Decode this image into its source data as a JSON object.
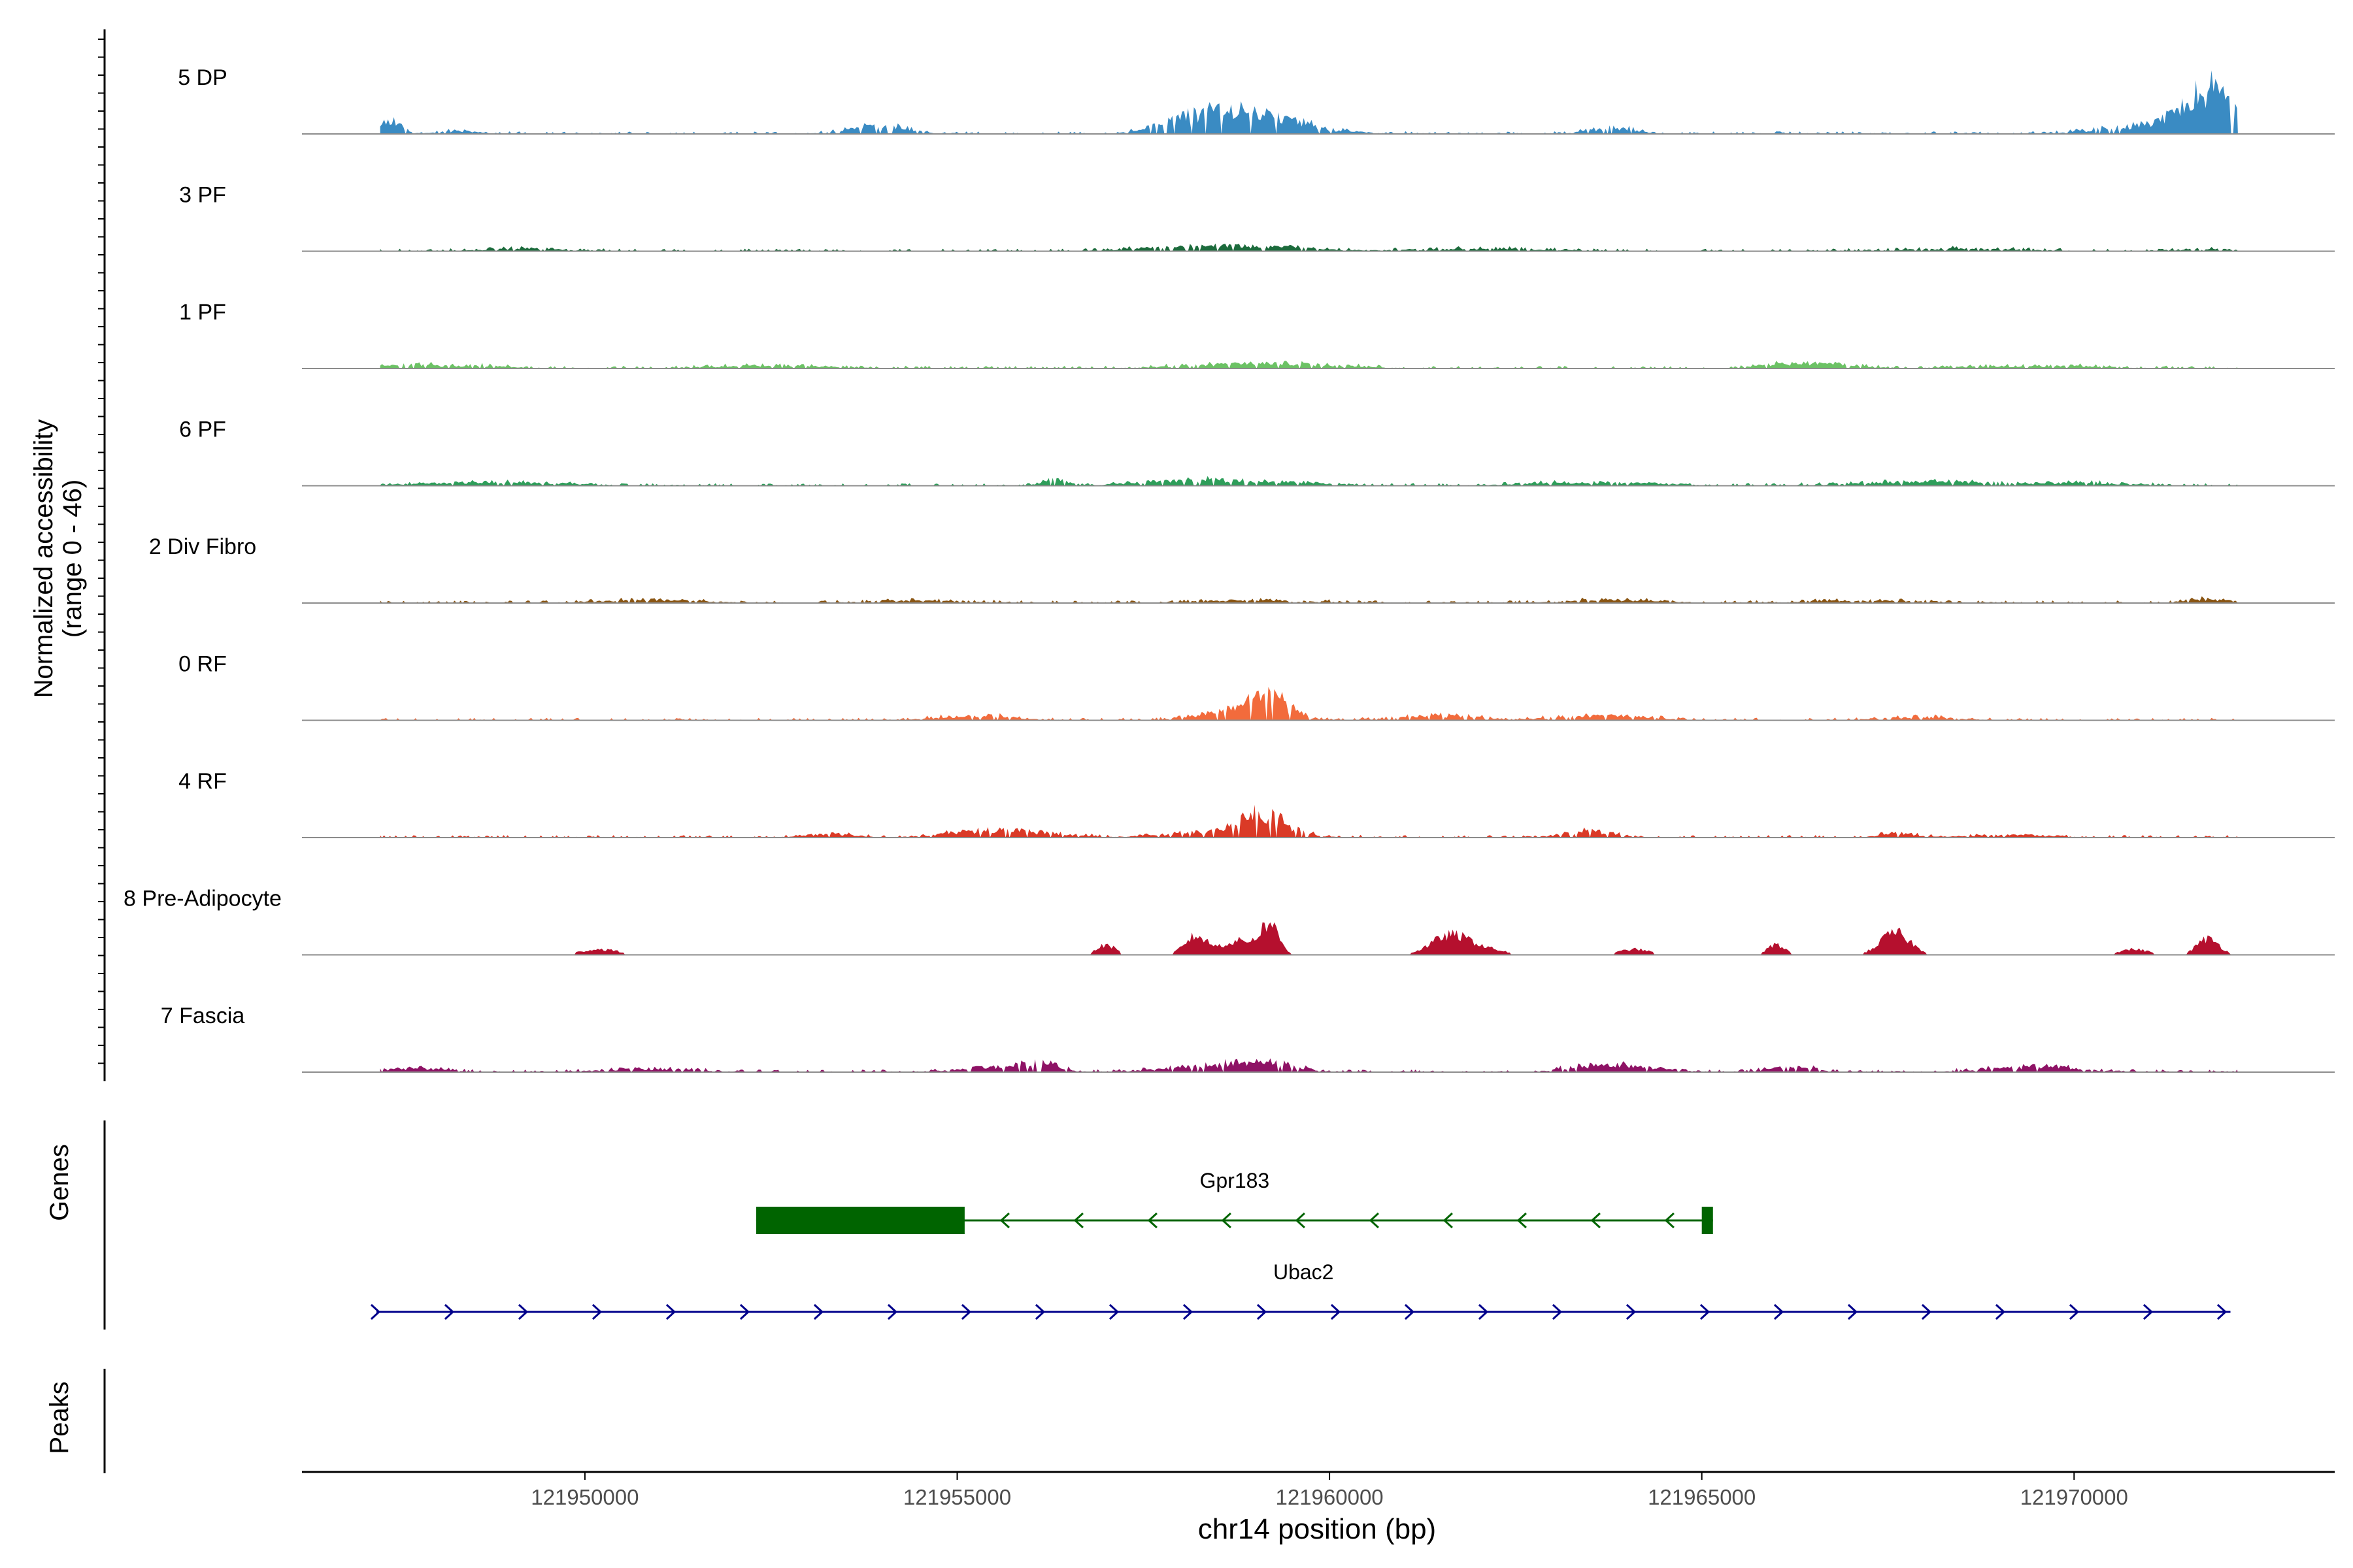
{
  "chart_data": {
    "type": "area",
    "title": "",
    "ylabel_line1": "Normalized accessibility",
    "ylabel_line2": "(range 0 - 46)",
    "y_range": [
      0,
      46
    ],
    "xlabel": "chr14 position (bp)",
    "xlim": [
      121946200,
      121973500
    ],
    "x_ticks": [
      121950000,
      121955000,
      121960000,
      121965000,
      121970000
    ],
    "x_tick_labels": [
      "121950000",
      "121955000",
      "121960000",
      "121965000",
      "121970000"
    ],
    "tracks": [
      {
        "name": "5 DP",
        "color": "#3A8BC3",
        "peaks": [
          [
            121947400,
            5.2,
            140
          ],
          [
            121948300,
            1.2,
            250
          ],
          [
            121953900,
            3.3,
            380
          ],
          [
            121958000,
            3.5,
            350
          ],
          [
            121958700,
            4.2,
            450
          ],
          [
            121959000,
            5.8,
            700
          ],
          [
            121963800,
            2.4,
            300
          ],
          [
            121971200,
            4.0,
            700
          ],
          [
            121971850,
            16.5,
            320
          ]
        ]
      },
      {
        "name": "3 PF",
        "color": "#1C6B3C",
        "peaks": [
          [
            121949200,
            1.0,
            500
          ],
          [
            121957900,
            1.2,
            600
          ],
          [
            121959000,
            1.8,
            700
          ],
          [
            121962000,
            0.9,
            900
          ],
          [
            121968500,
            1.0,
            800
          ],
          [
            121971900,
            0.8,
            400
          ]
        ]
      },
      {
        "name": "1 PF",
        "color": "#6CC265",
        "peaks": [
          [
            121947600,
            1.7,
            300
          ],
          [
            121948500,
            1.0,
            500
          ],
          [
            121952500,
            1.1,
            800
          ],
          [
            121959100,
            2.0,
            900
          ],
          [
            121966000,
            1.4,
            300
          ],
          [
            121966700,
            1.7,
            400
          ],
          [
            121969500,
            1.0,
            900
          ]
        ]
      },
      {
        "name": "6 PF",
        "color": "#2E9E5A",
        "peaks": [
          [
            121948800,
            1.5,
            900
          ],
          [
            121956300,
            2.8,
            150
          ],
          [
            121958000,
            2.0,
            600
          ],
          [
            121959200,
            1.5,
            700
          ],
          [
            121963500,
            1.4,
            800
          ],
          [
            121968000,
            1.6,
            900
          ],
          [
            121970200,
            1.0,
            600
          ]
        ]
      },
      {
        "name": "2 Div Fibro",
        "color": "#8A5512",
        "peaks": [
          [
            121950900,
            1.2,
            700
          ],
          [
            121954500,
            0.9,
            700
          ],
          [
            121959000,
            1.2,
            700
          ],
          [
            121963800,
            1.2,
            600
          ],
          [
            121967200,
            1.0,
            700
          ],
          [
            121971800,
            1.5,
            300
          ]
        ]
      },
      {
        "name": "0 RF",
        "color": "#F26B3C",
        "peaks": [
          [
            121955200,
            1.8,
            500
          ],
          [
            121958400,
            1.5,
            400
          ],
          [
            121959000,
            4.4,
            400
          ],
          [
            121959200,
            7.2,
            220
          ],
          [
            121961500,
            1.8,
            500
          ],
          [
            121963700,
            1.8,
            600
          ],
          [
            121967900,
            1.2,
            500
          ]
        ]
      },
      {
        "name": "4 RF",
        "color": "#DA3A27",
        "peaks": [
          [
            121953300,
            1.6,
            300
          ],
          [
            121955300,
            2.5,
            500
          ],
          [
            121956000,
            1.5,
            500
          ],
          [
            121958600,
            2.2,
            700
          ],
          [
            121959100,
            8.5,
            300
          ],
          [
            121963500,
            2.6,
            350
          ],
          [
            121967600,
            1.8,
            200
          ],
          [
            121969000,
            1.0,
            600
          ]
        ]
      },
      {
        "name": "8 Pre-Adipocyte",
        "color": "#B5102E",
        "peaks": [
          [
            121950200,
            2.8,
            250
          ],
          [
            121957000,
            5.0,
            120
          ],
          [
            121958200,
            9.0,
            150
          ],
          [
            121958800,
            7.0,
            250
          ],
          [
            121959200,
            14.0,
            120
          ],
          [
            121961600,
            8.5,
            250
          ],
          [
            121962000,
            3.2,
            300
          ],
          [
            121964100,
            2.8,
            200
          ],
          [
            121966000,
            5.0,
            120
          ],
          [
            121967600,
            11.0,
            200
          ],
          [
            121970800,
            2.8,
            200
          ],
          [
            121971800,
            8.0,
            150
          ]
        ]
      },
      {
        "name": "7 Fascia",
        "color": "#8E1265",
        "peaks": [
          [
            121947700,
            1.5,
            400
          ],
          [
            121950900,
            1.3,
            600
          ],
          [
            121955600,
            2.3,
            500
          ],
          [
            121956100,
            3.2,
            200
          ],
          [
            121958200,
            2.0,
            500
          ],
          [
            121959100,
            4.5,
            400
          ],
          [
            121963800,
            3.2,
            500
          ],
          [
            121966200,
            2.2,
            300
          ],
          [
            121969500,
            2.2,
            600
          ]
        ]
      }
    ],
    "genes_label": "Genes",
    "peaks_label": "Peaks",
    "genes": [
      {
        "name": "Gpr183",
        "color": "#006400",
        "start": 121952300,
        "end": 121965150,
        "strand": "-",
        "exons": [
          [
            121952300,
            121955100
          ],
          [
            121965000,
            121965150
          ]
        ]
      },
      {
        "name": "Ubac2",
        "color": "#00008B",
        "start": 121947200,
        "end": 121972100,
        "strand": "+",
        "exons": []
      }
    ]
  }
}
